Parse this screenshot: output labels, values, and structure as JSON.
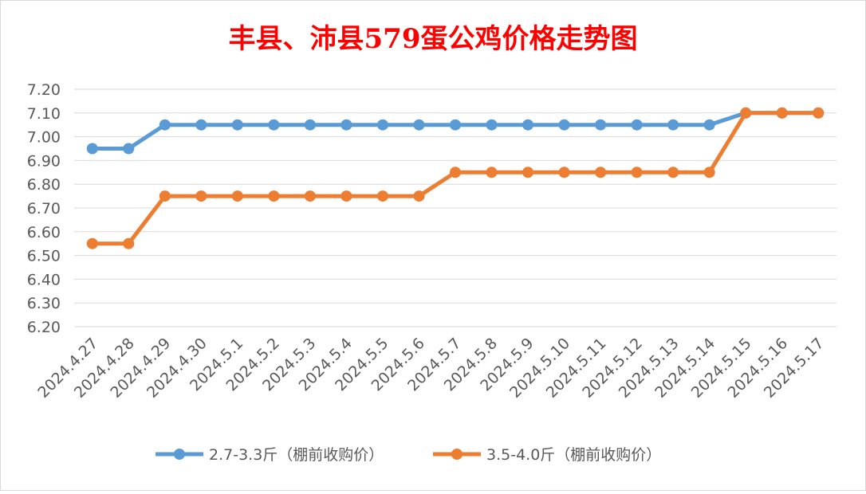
{
  "chart_data": {
    "type": "line",
    "title": "丰县、沛县579蛋公鸡价格走势图",
    "xlabel": "",
    "ylabel": "",
    "categories": [
      "2024.4.27",
      "2024.4.28",
      "2024.4.29",
      "2024.4.30",
      "2024.5.1",
      "2024.5.2",
      "2024.5.3",
      "2024.5.4",
      "2024.5.5",
      "2024.5.6",
      "2024.5.7",
      "2024.5.8",
      "2024.5.9",
      "2024.5.10",
      "2024.5.11",
      "2024.5.12",
      "2024.5.13",
      "2024.5.14",
      "2024.5.15",
      "2024.5.16",
      "2024.5.17"
    ],
    "ylim": [
      6.2,
      7.2
    ],
    "yticks": [
      "6.20",
      "6.30",
      "6.40",
      "6.50",
      "6.60",
      "6.70",
      "6.80",
      "6.90",
      "7.00",
      "7.10",
      "7.20"
    ],
    "grid": true,
    "legend_position": "bottom",
    "series": [
      {
        "name": "2.7-3.3斤（棚前收购价）",
        "color": "#5b9bd5",
        "values": [
          6.95,
          6.95,
          7.05,
          7.05,
          7.05,
          7.05,
          7.05,
          7.05,
          7.05,
          7.05,
          7.05,
          7.05,
          7.05,
          7.05,
          7.05,
          7.05,
          7.05,
          7.05,
          7.1,
          7.1,
          7.1
        ]
      },
      {
        "name": "3.5-4.0斤（棚前收购价）",
        "color": "#ed7d31",
        "values": [
          6.55,
          6.55,
          6.75,
          6.75,
          6.75,
          6.75,
          6.75,
          6.75,
          6.75,
          6.75,
          6.85,
          6.85,
          6.85,
          6.85,
          6.85,
          6.85,
          6.85,
          6.85,
          7.1,
          7.1,
          7.1
        ]
      }
    ]
  },
  "colors": {
    "title": "#ff0000",
    "grid": "#d9d9d9",
    "axis_text": "#595959"
  }
}
